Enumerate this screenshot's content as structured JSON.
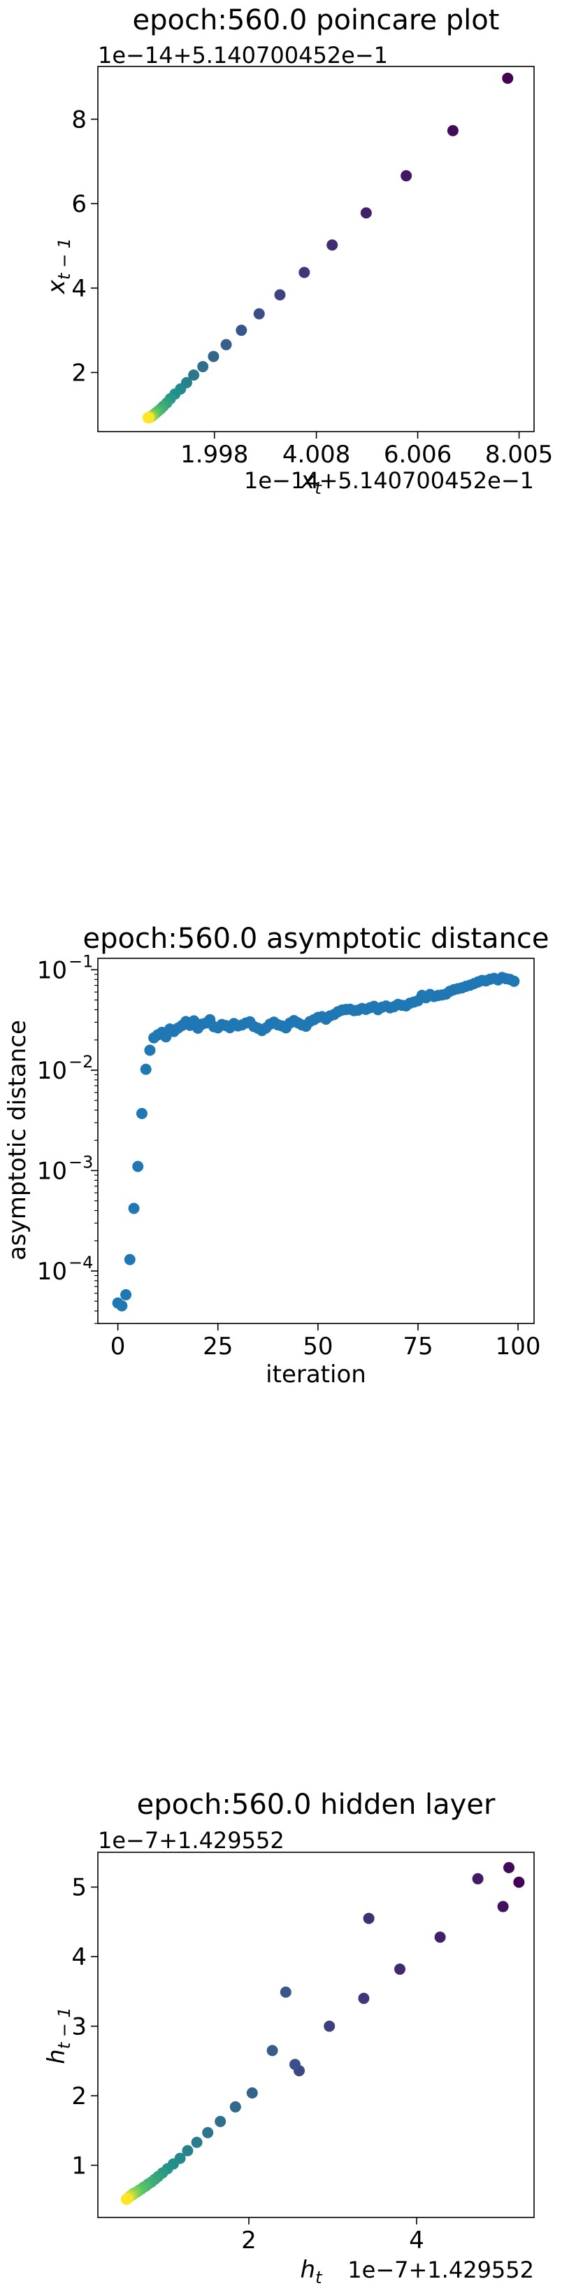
{
  "chart_data": [
    {
      "type": "scatter",
      "title": "epoch:560.0 poincare plot",
      "xlabel_main": "x",
      "xlabel_sub": "t",
      "ylabel_main": "x",
      "ylabel_sub": "t − 1",
      "x_offset_text": "1e−14+5.140700452e−1",
      "y_offset_text": "1e−14+5.140700452e−1",
      "xlim": [
        -0.3,
        8.3
      ],
      "ylim": [
        0.6,
        9.25
      ],
      "xticks": [
        1.998,
        4.008,
        6.006,
        8.005
      ],
      "xtick_labels": [
        "1.998",
        "4.008",
        "6.006",
        "8.005"
      ],
      "yticks": [
        2,
        4,
        6,
        8
      ],
      "ytick_labels": [
        "2",
        "4",
        "6",
        "8"
      ],
      "colormap": [
        "#440154",
        "#3b528b",
        "#21918c",
        "#5ec962",
        "#fde725"
      ],
      "x": [
        7.78,
        6.7,
        5.78,
        4.99,
        4.32,
        3.77,
        3.29,
        2.88,
        2.53,
        2.23,
        1.98,
        1.77,
        1.59,
        1.45,
        1.33,
        1.22,
        1.13,
        1.06,
        0.99,
        0.94,
        0.89,
        0.85,
        0.82,
        0.79,
        0.77,
        0.75,
        0.73,
        0.72,
        0.71,
        0.7,
        0.69
      ],
      "y": [
        8.97,
        7.73,
        6.66,
        5.78,
        5.02,
        4.37,
        3.84,
        3.39,
        3.0,
        2.66,
        2.38,
        2.14,
        1.94,
        1.76,
        1.61,
        1.49,
        1.38,
        1.28,
        1.2,
        1.14,
        1.09,
        1.05,
        1.02,
        0.99,
        0.97,
        0.96,
        0.95,
        0.94,
        0.93,
        0.93,
        0.93
      ]
    },
    {
      "type": "scatter",
      "title": "epoch:560.0 asymptotic distance",
      "xlabel": "iteration",
      "ylabel": "asymptotic distance",
      "yscale": "log",
      "xlim": [
        -5,
        104
      ],
      "ylim": [
        3e-05,
        0.13
      ],
      "xticks": [
        0,
        25,
        50,
        75,
        100
      ],
      "xtick_labels": [
        "0",
        "25",
        "50",
        "75",
        "100"
      ],
      "yticks": [
        0.0001,
        0.001,
        0.01,
        0.1
      ],
      "ytick_labels": [
        "10",
        "10",
        "10",
        "10"
      ],
      "ytick_exponents": [
        "−4",
        "−3",
        "−2",
        "−1"
      ],
      "color": "#1f77b4",
      "x": [
        0,
        1,
        2,
        3,
        4,
        5,
        6,
        7,
        8,
        9,
        10,
        11,
        12,
        13,
        14,
        15,
        16,
        17,
        18,
        19,
        20,
        21,
        22,
        23,
        24,
        25,
        26,
        27,
        28,
        29,
        30,
        31,
        32,
        33,
        34,
        35,
        36,
        37,
        38,
        39,
        40,
        41,
        42,
        43,
        44,
        45,
        46,
        47,
        48,
        49,
        50,
        51,
        52,
        53,
        54,
        55,
        56,
        57,
        58,
        59,
        60,
        61,
        62,
        63,
        64,
        65,
        66,
        67,
        68,
        69,
        70,
        71,
        72,
        73,
        74,
        75,
        76,
        77,
        78,
        79,
        80,
        81,
        82,
        83,
        84,
        85,
        86,
        87,
        88,
        89,
        90,
        91,
        92,
        93,
        94,
        95,
        96,
        97,
        98,
        99
      ],
      "y": [
        4.8e-05,
        4.5e-05,
        5.8e-05,
        0.00013,
        0.00042,
        0.0011,
        0.0037,
        0.0102,
        0.0158,
        0.021,
        0.0225,
        0.0238,
        0.0215,
        0.0257,
        0.0243,
        0.0262,
        0.0278,
        0.0305,
        0.028,
        0.031,
        0.0262,
        0.0287,
        0.0295,
        0.0318,
        0.0271,
        0.0264,
        0.0285,
        0.0278,
        0.0265,
        0.0291,
        0.0276,
        0.0282,
        0.0295,
        0.0303,
        0.0272,
        0.0262,
        0.0248,
        0.0263,
        0.0287,
        0.0301,
        0.0283,
        0.0276,
        0.0264,
        0.0295,
        0.0312,
        0.0296,
        0.0282,
        0.0274,
        0.0305,
        0.0318,
        0.0335,
        0.0341,
        0.0322,
        0.0347,
        0.0358,
        0.0382,
        0.0397,
        0.0402,
        0.0405,
        0.0392,
        0.0396,
        0.0411,
        0.0403,
        0.0419,
        0.0432,
        0.0401,
        0.0424,
        0.0436,
        0.0418,
        0.0429,
        0.0452,
        0.0443,
        0.0437,
        0.0465,
        0.0477,
        0.0492,
        0.0555,
        0.0527,
        0.0568,
        0.0542,
        0.0554,
        0.0561,
        0.0573,
        0.0612,
        0.0634,
        0.0648,
        0.0662,
        0.0685,
        0.0702,
        0.0728,
        0.0756,
        0.0782,
        0.0776,
        0.0805,
        0.0821,
        0.0793,
        0.0838,
        0.0815,
        0.0802,
        0.0768
      ]
    },
    {
      "type": "scatter",
      "title": "epoch:560.0 hidden layer",
      "xlabel_main": "h",
      "xlabel_sub": "t",
      "ylabel_main": "h",
      "ylabel_sub": "t − 1",
      "x_offset_text": "1e−7+1.429552",
      "y_offset_text": "1e−7+1.429552",
      "xlim": [
        0.2,
        5.4
      ],
      "ylim": [
        0.25,
        5.5
      ],
      "xticks": [
        2,
        4
      ],
      "xtick_labels": [
        "2",
        "4"
      ],
      "yticks": [
        1,
        2,
        3,
        4,
        5
      ],
      "ytick_labels": [
        "1",
        "2",
        "3",
        "4",
        "5"
      ],
      "colormap": [
        "#440154",
        "#3b528b",
        "#21918c",
        "#5ec962",
        "#fde725"
      ],
      "x": [
        5.22,
        5.1,
        5.03,
        4.73,
        4.28,
        3.8,
        3.43,
        3.37,
        2.96,
        2.6,
        2.55,
        2.44,
        2.28,
        2.04,
        1.84,
        1.66,
        1.51,
        1.38,
        1.27,
        1.18,
        1.1,
        1.03,
        0.97,
        0.92,
        0.88,
        0.84,
        0.8,
        0.77,
        0.74,
        0.72,
        0.69,
        0.67,
        0.65,
        0.63,
        0.62,
        0.6,
        0.59,
        0.58,
        0.57,
        0.56,
        0.55,
        0.54
      ],
      "y": [
        5.07,
        5.28,
        4.72,
        5.12,
        4.28,
        3.82,
        4.55,
        3.4,
        3.0,
        2.36,
        2.45,
        3.49,
        2.65,
        2.04,
        1.84,
        1.63,
        1.47,
        1.33,
        1.21,
        1.1,
        1.02,
        0.95,
        0.89,
        0.84,
        0.8,
        0.76,
        0.73,
        0.7,
        0.68,
        0.66,
        0.64,
        0.62,
        0.61,
        0.6,
        0.58,
        0.57,
        0.56,
        0.55,
        0.54,
        0.53,
        0.52,
        0.51
      ]
    }
  ]
}
